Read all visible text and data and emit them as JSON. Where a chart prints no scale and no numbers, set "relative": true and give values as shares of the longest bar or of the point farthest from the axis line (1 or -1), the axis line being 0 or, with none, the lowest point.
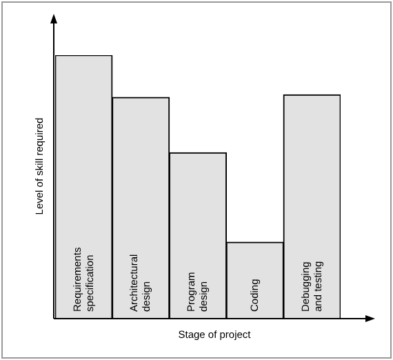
{
  "chart_data": {
    "type": "bar",
    "relative": true,
    "xlabel": "Stage of project",
    "ylabel": "Level of skill required",
    "categories": [
      "Requirements specification",
      "Architectural design",
      "Program design",
      "Coding",
      "Debugging and testing"
    ],
    "values": [
      1,
      0.84,
      0.63,
      0.29,
      0.85
    ],
    "color": "#e2e2e2",
    "legend": false
  }
}
